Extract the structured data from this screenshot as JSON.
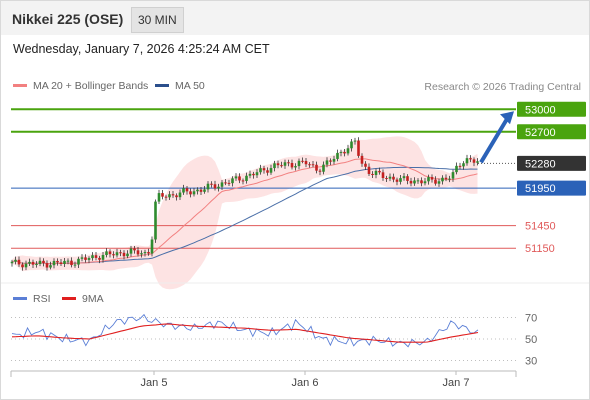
{
  "header": {
    "instrument": "Nikkei 225 (OSE)",
    "timeframe": "30 MIN"
  },
  "timestamp": "Wednesday, January 7, 2026 4:25:24 AM CET",
  "legend": {
    "ma20_label": "MA 20 + Bollinger Bands",
    "ma50_label": "MA 50",
    "rsi_label": "RSI",
    "ma9_label": "9MA"
  },
  "credit": "Research © 2026 Trading Central",
  "colors": {
    "bullish_level": "#4aa40e",
    "support_level": "#2b62b8",
    "resistance_level": "#e05a5a",
    "current_price": "#333333",
    "ma20": "#f28080",
    "ma50": "#4a6fa8",
    "bollinger_fill": "#fde0e0",
    "rsi": "#5b7fd6",
    "rsi_ma": "#e01f1f",
    "arrow": "#2b62b8"
  },
  "chart_data": [
    {
      "type": "candlestick",
      "title": "Nikkei 225 (OSE)",
      "interval": "30 MIN",
      "x_tick_labels": [
        "Jan 5",
        "Jan 6",
        "Jan 7"
      ],
      "ylim": [
        50700,
        53150
      ],
      "levels": [
        {
          "label": "53000",
          "value": 53000,
          "kind": "bullish target"
        },
        {
          "label": "52700",
          "value": 52700,
          "kind": "bullish target"
        },
        {
          "label": "52280",
          "value": 52280,
          "kind": "current price"
        },
        {
          "label": "51950",
          "value": 51950,
          "kind": "pivot"
        },
        {
          "label": "51450",
          "value": 51450,
          "kind": "support"
        },
        {
          "label": "51150",
          "value": 51150,
          "kind": "support"
        }
      ],
      "series": [
        {
          "name": "MA 20 + Bollinger Bands",
          "approx_path": [
            50920,
            50940,
            50960,
            51010,
            51060,
            51300,
            51700,
            52000,
            52160,
            52250,
            52300,
            52260,
            52190,
            52200,
            52220
          ]
        },
        {
          "name": "MA 50",
          "approx_path": [
            50900,
            50905,
            50930,
            50960,
            51100,
            51350,
            51600,
            51850,
            52050,
            52180,
            52230,
            52240,
            52230,
            52240,
            52240
          ]
        }
      ],
      "projection": {
        "from": 52280,
        "to": 53000
      }
    },
    {
      "type": "line",
      "title": "RSI",
      "yticks": [
        70,
        50,
        30
      ],
      "ylim": [
        25,
        75
      ],
      "series": [
        {
          "name": "RSI",
          "approx_path": [
            53,
            57,
            50,
            48,
            66,
            70,
            63,
            60,
            65,
            58,
            55,
            65,
            50,
            47,
            49,
            46,
            47,
            65,
            55
          ]
        },
        {
          "name": "9MA",
          "approx_path": [
            52,
            53,
            51,
            50,
            56,
            62,
            64,
            62,
            61,
            60,
            58,
            59,
            55,
            51,
            49,
            47,
            47,
            52,
            56
          ]
        }
      ]
    }
  ]
}
